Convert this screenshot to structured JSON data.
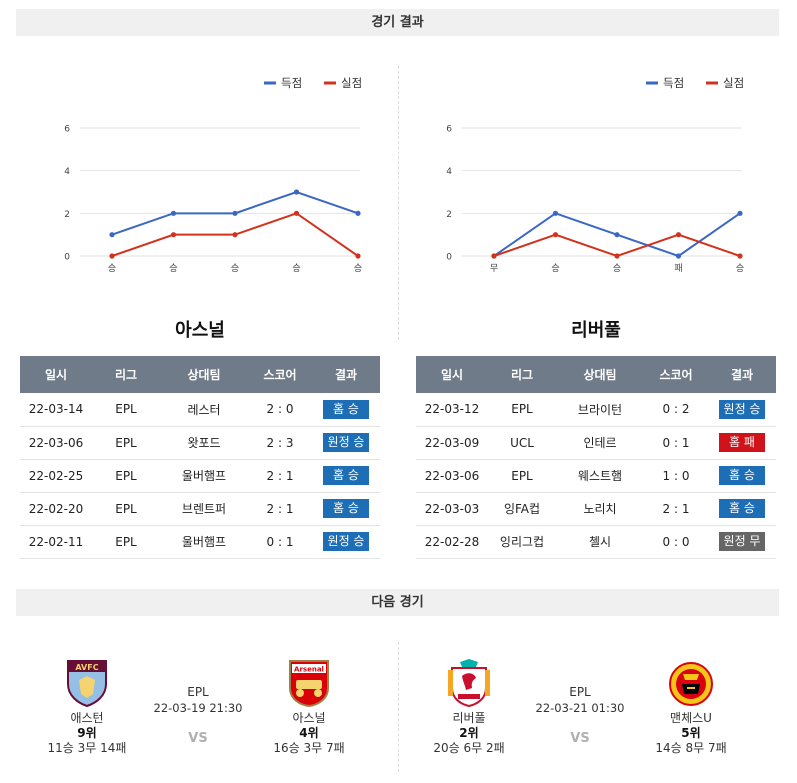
{
  "sections": {
    "results_title": "경기 결과",
    "next_title": "다음 경기"
  },
  "legend": {
    "scored": "득점",
    "conceded": "실점"
  },
  "colors": {
    "scored": "#3a67c4",
    "conceded": "#d2321c",
    "win": "#1e6eb5",
    "loss": "#d0121b",
    "draw": "#666666"
  },
  "chart_data": [
    {
      "type": "line",
      "categories": [
        "승",
        "승",
        "승",
        "승",
        "승"
      ],
      "series": [
        {
          "name": "득점",
          "values": [
            1,
            2,
            2,
            3,
            2
          ]
        },
        {
          "name": "실점",
          "values": [
            0,
            1,
            1,
            2,
            0
          ]
        }
      ],
      "yticks": [
        0,
        2,
        4,
        6
      ],
      "ylim": [
        0,
        6
      ],
      "grid": true,
      "legend": "top-right"
    },
    {
      "type": "line",
      "categories": [
        "무",
        "승",
        "승",
        "패",
        "승"
      ],
      "series": [
        {
          "name": "득점",
          "values": [
            0,
            2,
            1,
            0,
            2
          ]
        },
        {
          "name": "실점",
          "values": [
            0,
            1,
            0,
            1,
            0
          ]
        }
      ],
      "yticks": [
        0,
        2,
        4,
        6
      ],
      "ylim": [
        0,
        6
      ],
      "grid": true,
      "legend": "top-right"
    }
  ],
  "table_headers": [
    "일시",
    "리그",
    "상대팀",
    "스코어",
    "결과"
  ],
  "teams": [
    {
      "name": "아스널",
      "rows": [
        {
          "date": "22-03-14",
          "league": "EPL",
          "opponent": "레스터",
          "score": "2 : 0",
          "result": "홈 승",
          "type": "win"
        },
        {
          "date": "22-03-06",
          "league": "EPL",
          "opponent": "왓포드",
          "score": "2 : 3",
          "result": "원정 승",
          "type": "win"
        },
        {
          "date": "22-02-25",
          "league": "EPL",
          "opponent": "울버햄프",
          "score": "2 : 1",
          "result": "홈 승",
          "type": "win"
        },
        {
          "date": "22-02-20",
          "league": "EPL",
          "opponent": "브렌트퍼",
          "score": "2 : 1",
          "result": "홈 승",
          "type": "win"
        },
        {
          "date": "22-02-11",
          "league": "EPL",
          "opponent": "울버햄프",
          "score": "0 : 1",
          "result": "원정 승",
          "type": "win"
        }
      ]
    },
    {
      "name": "리버풀",
      "rows": [
        {
          "date": "22-03-12",
          "league": "EPL",
          "opponent": "브라이턴",
          "score": "0 : 2",
          "result": "원정 승",
          "type": "win"
        },
        {
          "date": "22-03-09",
          "league": "UCL",
          "opponent": "인테르",
          "score": "0 : 1",
          "result": "홈 패",
          "type": "loss"
        },
        {
          "date": "22-03-06",
          "league": "EPL",
          "opponent": "웨스트햄",
          "score": "1 : 0",
          "result": "홈 승",
          "type": "win"
        },
        {
          "date": "22-03-03",
          "league": "잉FA컵",
          "opponent": "노리치",
          "score": "2 : 1",
          "result": "홈 승",
          "type": "win"
        },
        {
          "date": "22-02-28",
          "league": "잉리그컵",
          "opponent": "첼시",
          "score": "0 : 0",
          "result": "원정 무",
          "type": "draw"
        }
      ]
    }
  ],
  "next_matches": [
    {
      "league": "EPL",
      "datetime": "22-03-19 21:30",
      "vs": "VS",
      "home": {
        "name": "애스턴",
        "rank": "9위",
        "record": "11승 3무 14패",
        "logo": "aston-villa-crest",
        "logo_text": "AVFC"
      },
      "away": {
        "name": "아스널",
        "rank": "4위",
        "record": "16승 3무 7패",
        "logo": "arsenal-crest",
        "logo_text": "Arsenal"
      }
    },
    {
      "league": "EPL",
      "datetime": "22-03-21 01:30",
      "vs": "VS",
      "home": {
        "name": "리버풀",
        "rank": "2위",
        "record": "20승 6무 2패",
        "logo": "liverpool-crest",
        "logo_text": ""
      },
      "away": {
        "name": "맨체스U",
        "rank": "5위",
        "record": "14승 8무 7패",
        "logo": "man-united-crest",
        "logo_text": ""
      }
    }
  ]
}
